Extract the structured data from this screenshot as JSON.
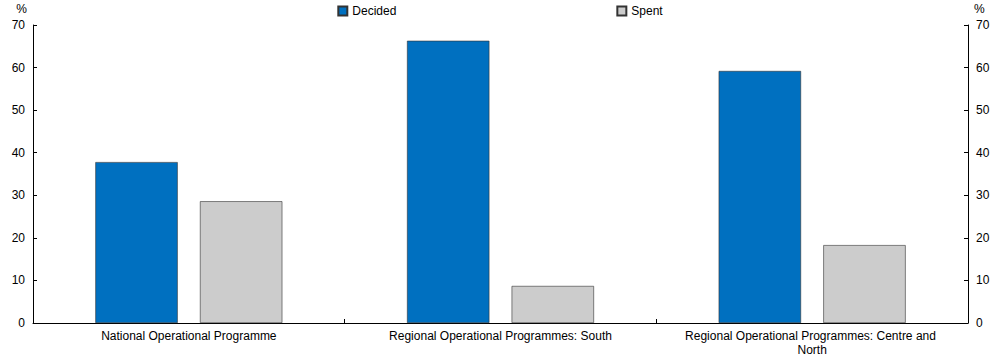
{
  "chart_data": {
    "type": "bar",
    "y_label": "%",
    "categories": [
      "National Operational Programme",
      "Regional Operational Programmes: South",
      "Regional Operational Programmes: Centre and North"
    ],
    "series": [
      {
        "name": "Decided",
        "color": "#0070c0",
        "values": [
          37.8,
          66.3,
          59.2
        ]
      },
      {
        "name": "Spent",
        "color": "#cccccc",
        "values": [
          28.6,
          8.7,
          18.3
        ]
      }
    ],
    "ylim": [
      0,
      70
    ],
    "yticks": [
      0,
      10,
      20,
      30,
      40,
      50,
      60,
      70
    ],
    "grid": false,
    "legend": "top"
  }
}
